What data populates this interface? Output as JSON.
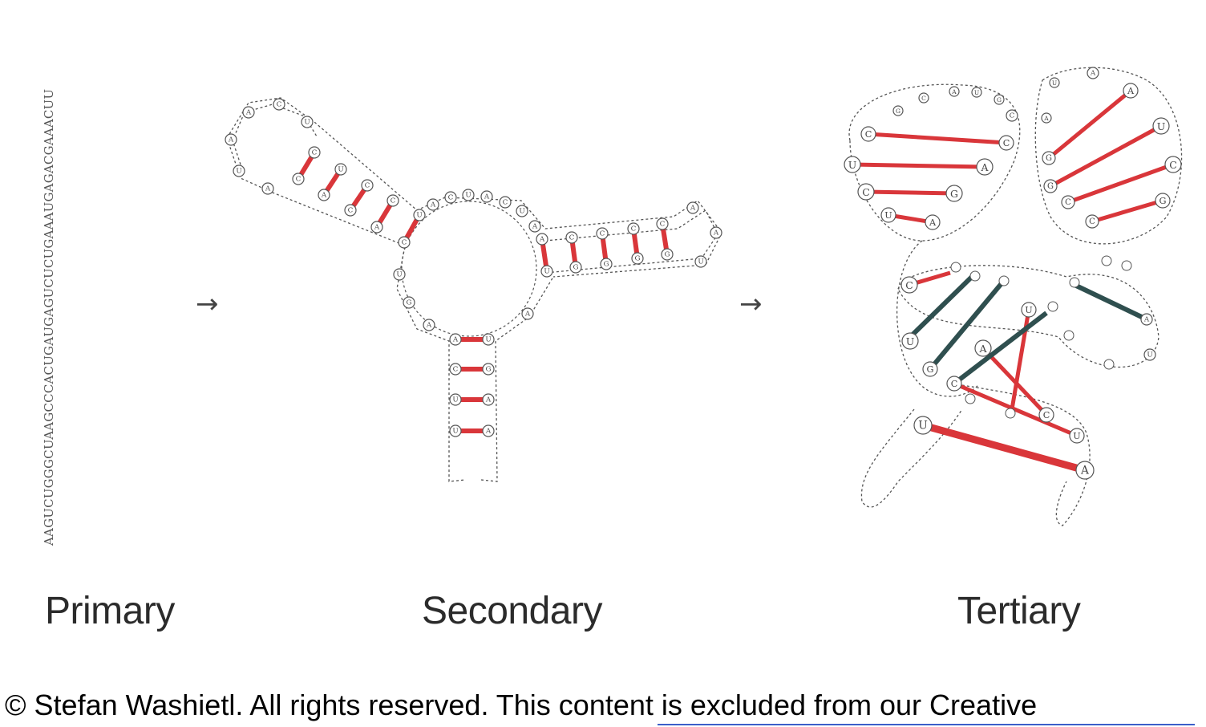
{
  "primary": {
    "label": "Primary",
    "sequence": "AAGUCUGGGCUAAGCCCACUGAUGAGUCUCUGAAAUGAGACGAAACUU"
  },
  "secondary": {
    "label": "Secondary"
  },
  "tertiary": {
    "label": "Tertiary"
  },
  "arrow_glyph": "→",
  "footer": {
    "copyright": "© Stefan Washietl. All rights reserved. This content is excluded from our Creative"
  },
  "colors": {
    "pair_red": "#d9363a",
    "pair_dark": "#2f4f4f",
    "outline": "#555555",
    "text": "#2b2b2b",
    "link_underline": "#3b5fc9"
  },
  "nucleotides": {
    "secondary_loop1": [
      "A",
      "C",
      "U",
      "A",
      "U",
      "A"
    ],
    "secondary_stem1_a": [
      "C",
      "U",
      "C",
      "C",
      "U"
    ],
    "secondary_stem1_b": [
      "C",
      "A",
      "C",
      "A",
      "C"
    ],
    "secondary_central": [
      "A",
      "C",
      "U",
      "A",
      "C",
      "U",
      "A",
      "U",
      "G",
      "A",
      "A",
      "C"
    ],
    "secondary_stem2_a": [
      "A",
      "C",
      "C",
      "C",
      "C"
    ],
    "secondary_stem2_b": [
      "U",
      "G",
      "G",
      "G",
      "G"
    ],
    "secondary_loop2": [
      "A",
      "A",
      "U"
    ],
    "secondary_stem3": [
      [
        "A",
        "U"
      ],
      [
        "C",
        "G"
      ],
      [
        "U",
        "A"
      ],
      [
        "U",
        "A"
      ]
    ],
    "tertiary_labels": [
      "C",
      "U",
      "C",
      "U",
      "C",
      "A",
      "G",
      "A",
      "G",
      "C",
      "A",
      "U",
      "G",
      "C",
      "G",
      "G",
      "C",
      "C",
      "A",
      "U",
      "C",
      "G",
      "A",
      "U",
      "A",
      "C",
      "U",
      "G",
      "C",
      "A",
      "U",
      "C",
      "U",
      "A",
      "U",
      "A",
      "U"
    ]
  }
}
